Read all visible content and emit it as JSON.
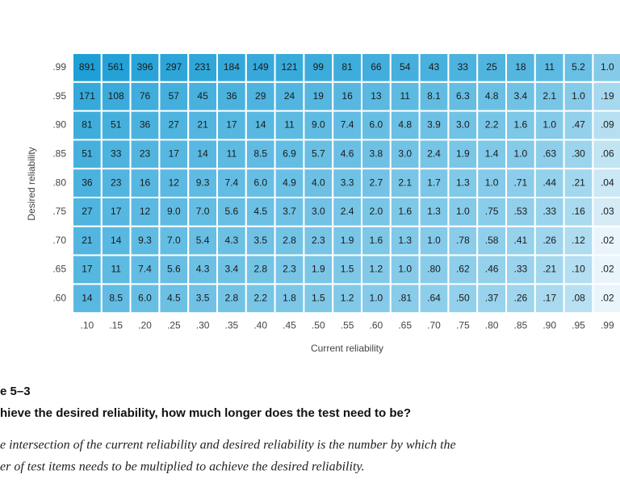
{
  "chart_data": {
    "type": "heatmap",
    "x_label": "Current reliability",
    "y_label": "Desired reliability",
    "x_categories": [
      ".10",
      ".15",
      ".20",
      ".25",
      ".30",
      ".35",
      ".40",
      ".45",
      ".50",
      ".55",
      ".60",
      ".65",
      ".70",
      ".75",
      ".80",
      ".85",
      ".90",
      ".95",
      ".99"
    ],
    "y_categories": [
      ".99",
      ".95",
      ".90",
      ".85",
      ".80",
      ".75",
      ".70",
      ".65",
      ".60"
    ],
    "color_low": "#eaf5fb",
    "color_high": "#1e9fd6",
    "values": [
      [
        891,
        561,
        396,
        297,
        231,
        184,
        149,
        121,
        99,
        81,
        66,
        54,
        43,
        33,
        25,
        18,
        11,
        5.2,
        1.0
      ],
      [
        171,
        108,
        76,
        57,
        45,
        36,
        29,
        24,
        19,
        16,
        13,
        11,
        8.1,
        6.3,
        4.8,
        3.4,
        2.1,
        1.0,
        0.19
      ],
      [
        81,
        51,
        36,
        27,
        21,
        17,
        14,
        11,
        9.0,
        7.4,
        6.0,
        4.8,
        3.9,
        3.0,
        2.2,
        1.6,
        1.0,
        0.47,
        0.09
      ],
      [
        51,
        33,
        23,
        17,
        14,
        11,
        8.5,
        6.9,
        5.7,
        4.6,
        3.8,
        3.0,
        2.4,
        1.9,
        1.4,
        1.0,
        0.63,
        0.3,
        0.06
      ],
      [
        36,
        23,
        16,
        12,
        9.3,
        7.4,
        6.0,
        4.9,
        4.0,
        3.3,
        2.7,
        2.1,
        1.7,
        1.3,
        1.0,
        0.71,
        0.44,
        0.21,
        0.04
      ],
      [
        27,
        17,
        12,
        9.0,
        7.0,
        5.6,
        4.5,
        3.7,
        3.0,
        2.4,
        2.0,
        1.6,
        1.3,
        1.0,
        0.75,
        0.53,
        0.33,
        0.16,
        0.03
      ],
      [
        21,
        14,
        9.3,
        7.0,
        5.4,
        4.3,
        3.5,
        2.8,
        2.3,
        1.9,
        1.6,
        1.3,
        1.0,
        0.78,
        0.58,
        0.41,
        0.26,
        0.12,
        0.02
      ],
      [
        17,
        11,
        7.4,
        5.6,
        4.3,
        3.4,
        2.8,
        2.3,
        1.9,
        1.5,
        1.2,
        1.0,
        0.8,
        0.62,
        0.46,
        0.33,
        0.21,
        0.1,
        0.02
      ],
      [
        14,
        8.5,
        6.0,
        4.5,
        3.5,
        2.8,
        2.2,
        1.8,
        1.5,
        1.2,
        1.0,
        0.81,
        0.64,
        0.5,
        0.37,
        0.26,
        0.17,
        0.08,
        0.02
      ]
    ],
    "value_labels": [
      [
        "891",
        "561",
        "396",
        "297",
        "231",
        "184",
        "149",
        "121",
        "99",
        "81",
        "66",
        "54",
        "43",
        "33",
        "25",
        "18",
        "11",
        "5.2",
        "1.0"
      ],
      [
        "171",
        "108",
        "76",
        "57",
        "45",
        "36",
        "29",
        "24",
        "19",
        "16",
        "13",
        "11",
        "8.1",
        "6.3",
        "4.8",
        "3.4",
        "2.1",
        "1.0",
        ".19"
      ],
      [
        "81",
        "51",
        "36",
        "27",
        "21",
        "17",
        "14",
        "11",
        "9.0",
        "7.4",
        "6.0",
        "4.8",
        "3.9",
        "3.0",
        "2.2",
        "1.6",
        "1.0",
        ".47",
        ".09"
      ],
      [
        "51",
        "33",
        "23",
        "17",
        "14",
        "11",
        "8.5",
        "6.9",
        "5.7",
        "4.6",
        "3.8",
        "3.0",
        "2.4",
        "1.9",
        "1.4",
        "1.0",
        ".63",
        ".30",
        ".06"
      ],
      [
        "36",
        "23",
        "16",
        "12",
        "9.3",
        "7.4",
        "6.0",
        "4.9",
        "4.0",
        "3.3",
        "2.7",
        "2.1",
        "1.7",
        "1.3",
        "1.0",
        ".71",
        ".44",
        ".21",
        ".04"
      ],
      [
        "27",
        "17",
        "12",
        "9.0",
        "7.0",
        "5.6",
        "4.5",
        "3.7",
        "3.0",
        "2.4",
        "2.0",
        "1.6",
        "1.3",
        "1.0",
        ".75",
        ".53",
        ".33",
        ".16",
        ".03"
      ],
      [
        "21",
        "14",
        "9.3",
        "7.0",
        "5.4",
        "4.3",
        "3.5",
        "2.8",
        "2.3",
        "1.9",
        "1.6",
        "1.3",
        "1.0",
        ".78",
        ".58",
        ".41",
        ".26",
        ".12",
        ".02"
      ],
      [
        "17",
        "11",
        "7.4",
        "5.6",
        "4.3",
        "3.4",
        "2.8",
        "2.3",
        "1.9",
        "1.5",
        "1.2",
        "1.0",
        ".80",
        ".62",
        ".46",
        ".33",
        ".21",
        ".10",
        ".02"
      ],
      [
        "14",
        "8.5",
        "6.0",
        "4.5",
        "3.5",
        "2.8",
        "2.2",
        "1.8",
        "1.5",
        "1.2",
        "1.0",
        ".81",
        ".64",
        ".50",
        ".37",
        ".26",
        ".17",
        ".08",
        ".02"
      ]
    ]
  },
  "caption": {
    "label": "e 5–3",
    "title": "hieve the desired reliability, how much longer does the test need to be?",
    "text": [
      "e intersection of the current reliability and desired reliability is the number by which the",
      "er of test items needs to be multiplied to achieve the desired reliability."
    ]
  }
}
